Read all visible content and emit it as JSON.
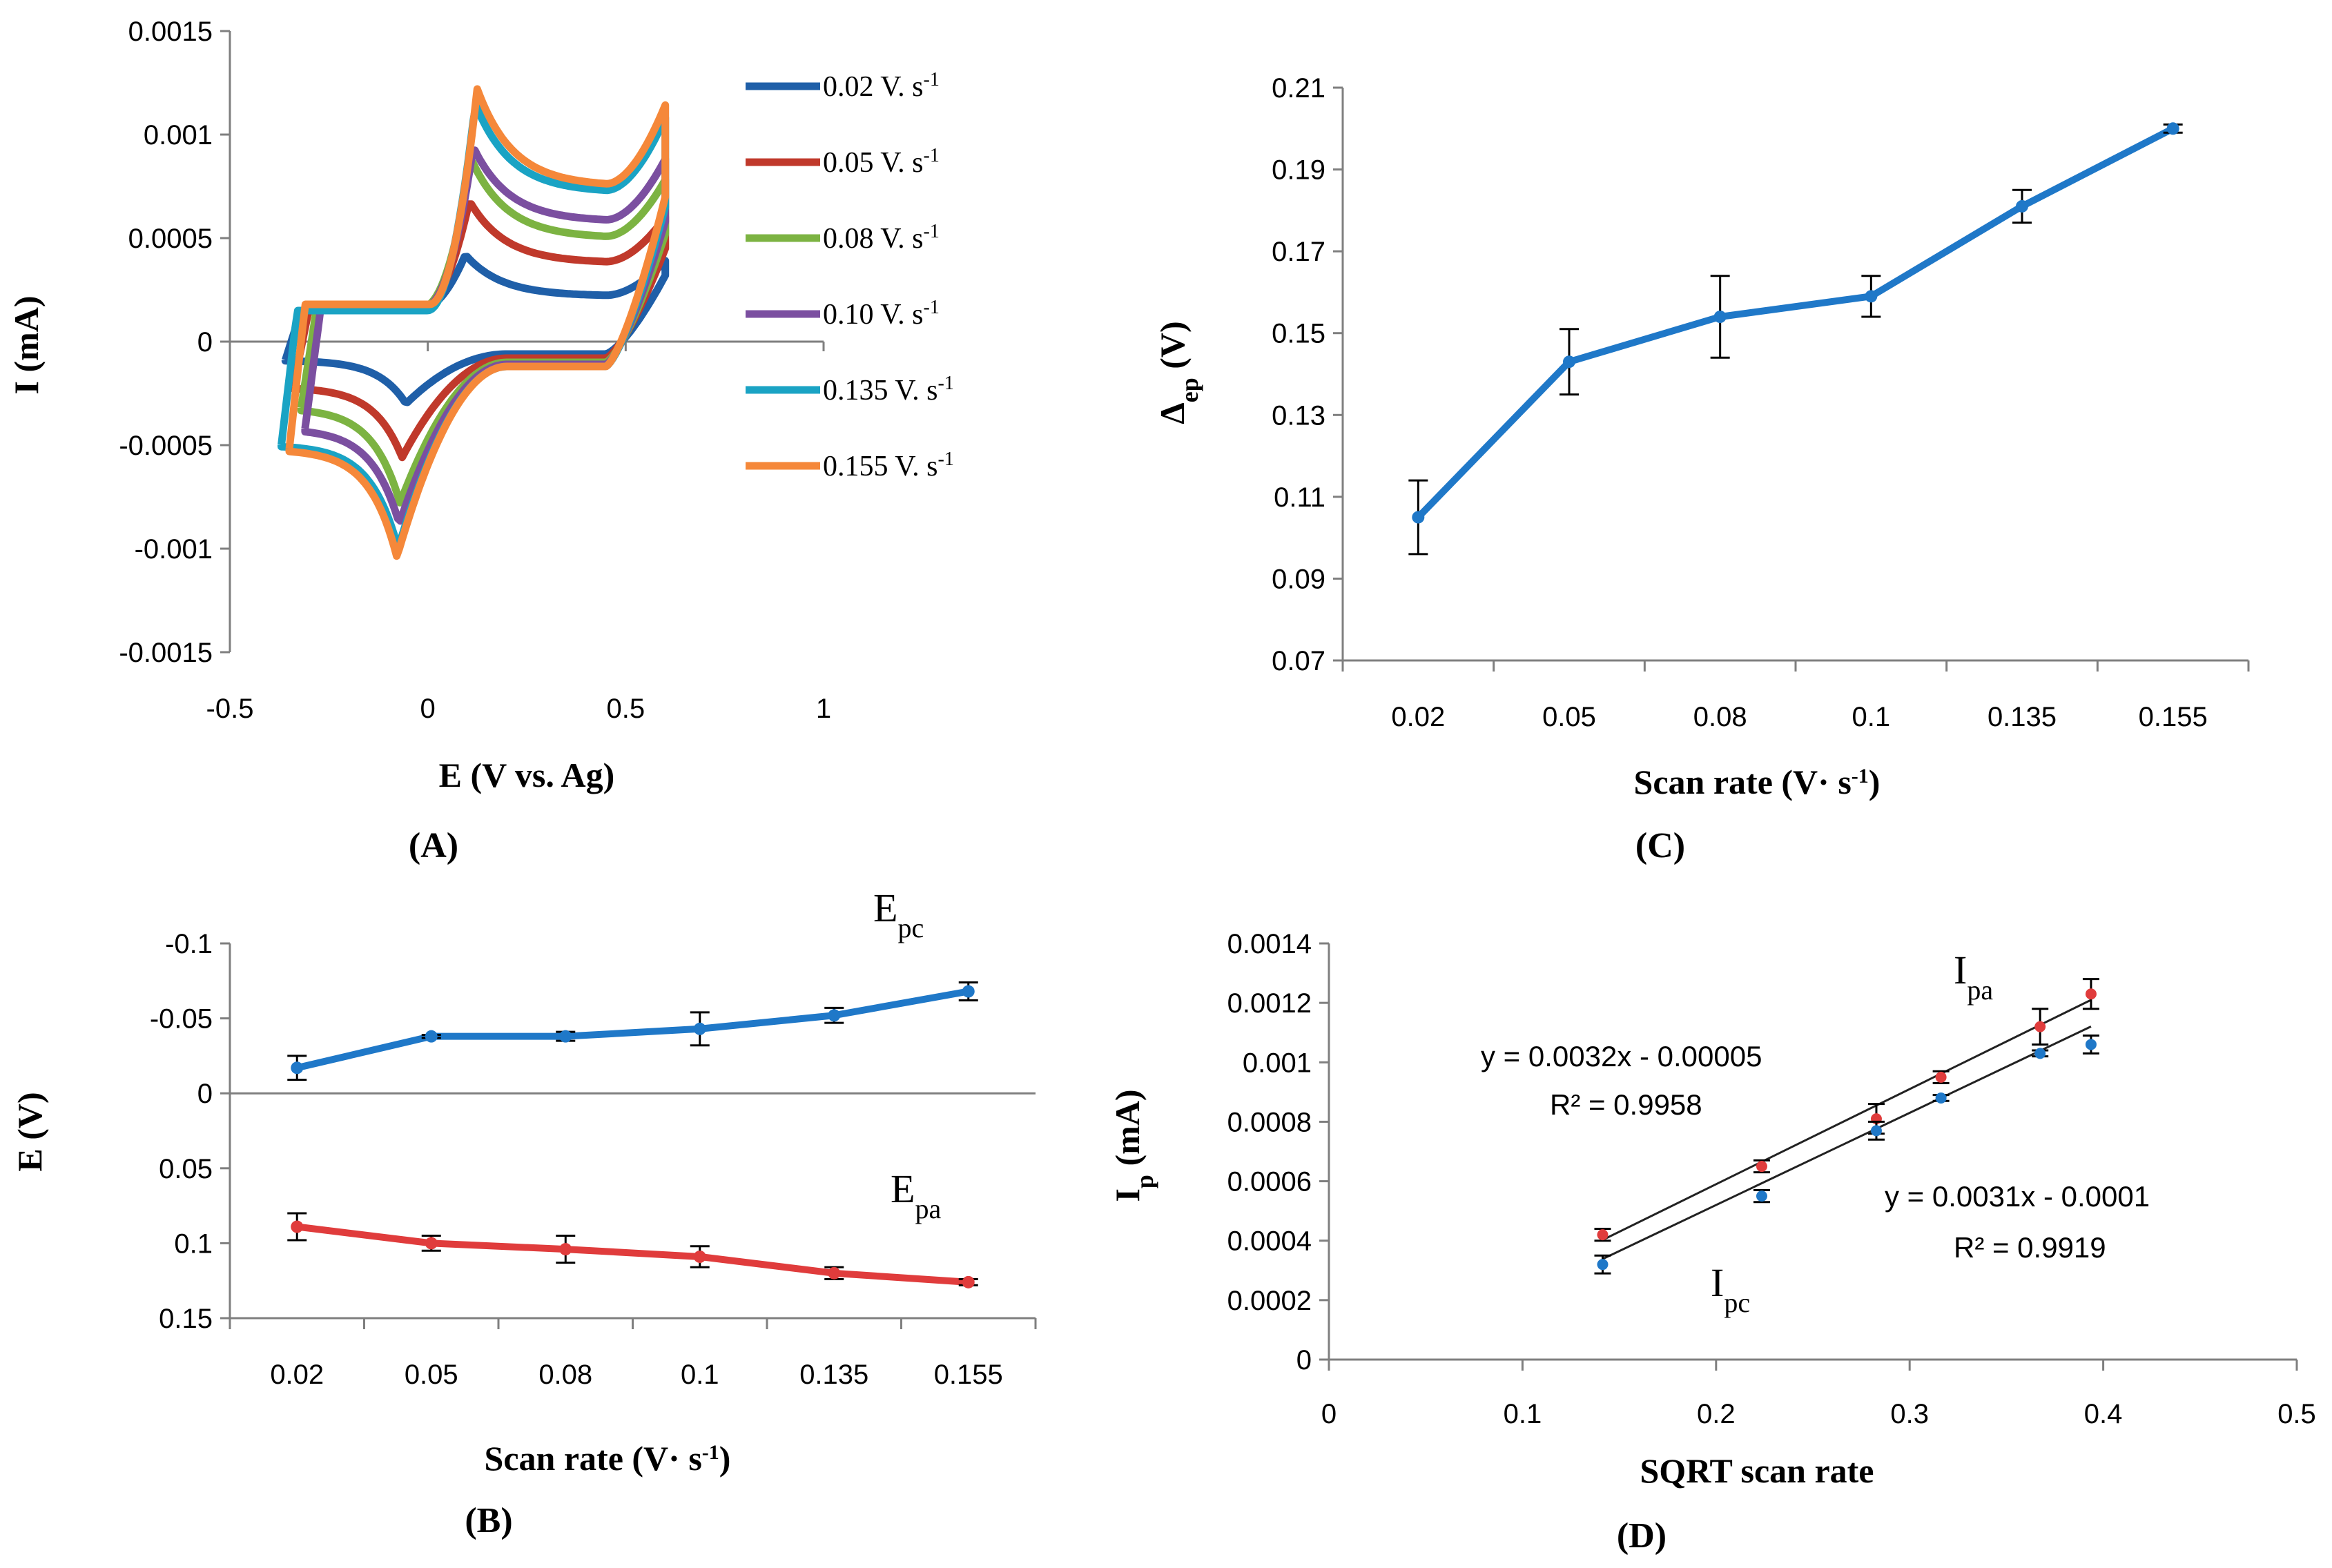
{
  "chart_data": [
    {
      "panel": "(A)",
      "type": "line",
      "subtype": "cyclic-voltammogram",
      "xlabel": "E (V vs. Ag)",
      "ylabel": "I (mA)",
      "xlim": [
        -0.5,
        1
      ],
      "ylim": [
        -0.0015,
        0.0015
      ],
      "xticks": [
        "-0.5",
        "0",
        "0.5",
        "1"
      ],
      "yticks": [
        "0.0015",
        "0.001",
        "0.0005",
        "0",
        "-0.0005",
        "-0.001",
        "-0.0015"
      ],
      "legend_position": "top-right",
      "series": [
        {
          "name": "0.02 V. s",
          "sup": "-1",
          "color": "#1f5fa8",
          "e_start": -0.36,
          "e_end": 0.6,
          "i_end_top": 0.00039,
          "i_end_bot": 0.00032,
          "i_cath_start": -9e-05,
          "ipa": 0.00042,
          "epa": 0.095,
          "ipc": -0.0003,
          "epc": -0.055,
          "i_forward_base": 0.00015,
          "i_reverse_base": -6e-05,
          "i_mid_top": 0.00022
        },
        {
          "name": "0.05 V. s",
          "sup": "-1",
          "color": "#c0392b",
          "e_start": -0.34,
          "e_end": 0.6,
          "i_end_top": 0.0006,
          "i_end_bot": 0.00045,
          "i_cath_start": -0.00022,
          "ipa": 0.00068,
          "epa": 0.105,
          "ipc": -0.00056,
          "epc": -0.065,
          "i_forward_base": 0.00016,
          "i_reverse_base": -8e-05,
          "i_mid_top": 0.00038
        },
        {
          "name": "0.08 V. s",
          "sup": "-1",
          "color": "#7cb342",
          "e_start": -0.32,
          "e_end": 0.6,
          "i_end_top": 0.00078,
          "i_end_bot": 0.00052,
          "i_cath_start": -0.00032,
          "ipa": 0.00088,
          "epa": 0.11,
          "ipc": -0.00078,
          "epc": -0.07,
          "i_forward_base": 0.00017,
          "i_reverse_base": -0.0001,
          "i_mid_top": 0.0005
        },
        {
          "name": "0.10 V. s",
          "sup": "-1",
          "color": "#7b4fa0",
          "e_start": -0.31,
          "e_end": 0.6,
          "i_end_top": 0.00088,
          "i_end_bot": 0.00058,
          "i_cath_start": -0.00042,
          "ipa": 0.00094,
          "epa": 0.115,
          "ipc": -0.00088,
          "epc": -0.072,
          "i_forward_base": 0.00017,
          "i_reverse_base": -0.00011,
          "i_mid_top": 0.00058
        },
        {
          "name": "0.135 V. s",
          "sup": "-1",
          "color": "#1aa3c4",
          "e_start": -0.37,
          "e_end": 0.6,
          "i_end_top": 0.00108,
          "i_end_bot": 0.00065,
          "i_cath_start": -0.0005,
          "ipa": 0.00115,
          "epa": 0.12,
          "ipc": -0.001,
          "epc": -0.075,
          "i_forward_base": 0.00015,
          "i_reverse_base": -0.00012,
          "i_mid_top": 0.00072
        },
        {
          "name": "0.155 V. s",
          "sup": "-1",
          "color": "#f5883a",
          "e_start": -0.35,
          "e_end": 0.6,
          "i_end_top": 0.00114,
          "i_end_bot": 0.0007,
          "i_cath_start": -0.00052,
          "ipa": 0.00122,
          "epa": 0.125,
          "ipc": -0.00104,
          "epc": -0.078,
          "i_forward_base": 0.00018,
          "i_reverse_base": -0.00012,
          "i_mid_top": 0.00075
        }
      ]
    },
    {
      "panel": "(B)",
      "type": "line",
      "xlabel": "Scan rate (V· s",
      "xlabel_sup": "-1",
      "xlabel_close": ")",
      "ylabel": "E (V)",
      "y_reversed": true,
      "ylim": [
        -0.1,
        0.15
      ],
      "yticks": [
        "-0.1",
        "-0.05",
        "0",
        "0.05",
        "0.1",
        "0.15"
      ],
      "categories": [
        "0.02",
        "0.05",
        "0.08",
        "0.1",
        "0.135",
        "0.155"
      ],
      "series": [
        {
          "name": "Epc",
          "label_main": "E",
          "label_sub": "pc",
          "color": "#1f78c8",
          "values": [
            -0.017,
            -0.038,
            -0.038,
            -0.043,
            -0.052,
            -0.068
          ],
          "errors": [
            0.008,
            0.001,
            0.003,
            0.011,
            0.005,
            0.006
          ]
        },
        {
          "name": "Epa",
          "label_main": "E",
          "label_sub": "pa",
          "color": "#e03c3c",
          "values": [
            0.089,
            0.1,
            0.104,
            0.109,
            0.12,
            0.126
          ],
          "errors": [
            0.009,
            0.005,
            0.009,
            0.007,
            0.004,
            0.002
          ]
        }
      ]
    },
    {
      "panel": "(C)",
      "type": "line",
      "xlabel": "Scan rate (V· s",
      "xlabel_sup": "-1",
      "xlabel_close": ")",
      "ylabel_main": "Δ",
      "ylabel_sub": "ep",
      "ylabel_unit": " (V)",
      "ylim": [
        0.07,
        0.21
      ],
      "yticks": [
        "0.21",
        "0.19",
        "0.17",
        "0.15",
        "0.13",
        "0.11",
        "0.09",
        "0.07"
      ],
      "categories": [
        "0.02",
        "0.05",
        "0.08",
        "0.1",
        "0.135",
        "0.155"
      ],
      "series": [
        {
          "name": "ΔEp",
          "color": "#1f78c8",
          "values": [
            0.105,
            0.143,
            0.154,
            0.159,
            0.181,
            0.2
          ],
          "errors": [
            0.009,
            0.008,
            0.01,
            0.005,
            0.004,
            0.001
          ]
        }
      ]
    },
    {
      "panel": "(D)",
      "type": "scatter",
      "xlabel": "SQRT scan rate",
      "ylabel_main": "I",
      "ylabel_sub": "p",
      "ylabel_unit": " (mA)",
      "xlim": [
        0,
        0.5
      ],
      "ylim": [
        0,
        0.0014
      ],
      "xticks": [
        "0",
        "0.1",
        "0.2",
        "0.3",
        "0.4",
        "0.5"
      ],
      "yticks": [
        "0.0014",
        "0.0012",
        "0.001",
        "0.0008",
        "0.0006",
        "0.0004",
        "0.0002",
        "0"
      ],
      "series": [
        {
          "name": "Ipa",
          "label_main": "I",
          "label_sub": "pa",
          "color": "#e03c3c",
          "x": [
            0.1414,
            0.2236,
            0.2828,
            0.3162,
            0.3674,
            0.3937
          ],
          "values": [
            0.00042,
            0.00065,
            0.00081,
            0.00095,
            0.00112,
            0.00123
          ],
          "errors": [
            2e-05,
            2e-05,
            5e-05,
            2e-05,
            6e-05,
            5e-05
          ],
          "trend": {
            "slope": 0.0032,
            "intercept": -5e-05
          },
          "equation": "y = 0.0032x - 0.00005",
          "r2": "R² = 0.9958"
        },
        {
          "name": "Ipc",
          "label_main": "I",
          "label_sub": "pc",
          "color": "#1f78c8",
          "x": [
            0.1414,
            0.2236,
            0.2828,
            0.3162,
            0.3674,
            0.3937
          ],
          "values": [
            0.00032,
            0.00055,
            0.00077,
            0.00088,
            0.00103,
            0.00106
          ],
          "errors": [
            3e-05,
            2e-05,
            3e-05,
            1e-05,
            1e-05,
            3e-05
          ],
          "trend": {
            "slope": 0.0031,
            "intercept": -0.0001
          },
          "equation": "y = 0.0031x - 0.0001",
          "r2": "R² = 0.9919"
        }
      ]
    }
  ]
}
